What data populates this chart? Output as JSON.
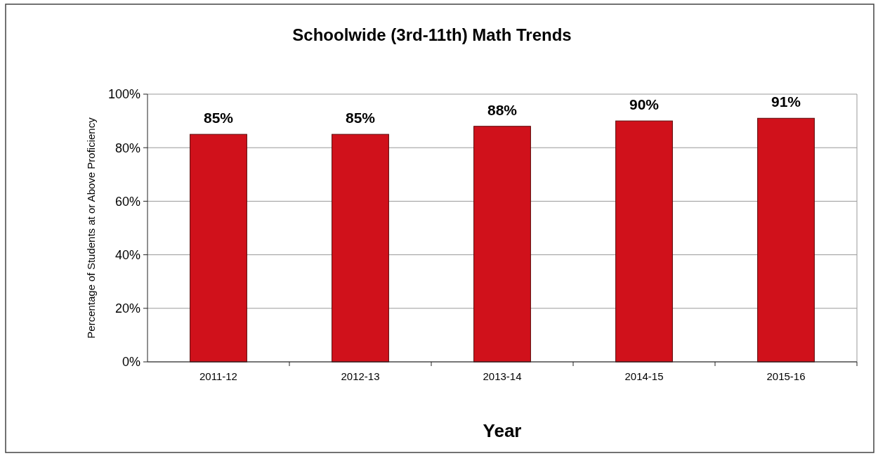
{
  "chart_data": {
    "type": "bar",
    "title": "Schoolwide (3rd-11th) Math Trends",
    "xlabel": "Year",
    "ylabel": "Percentage of Students at or Above Proficiency",
    "categories": [
      "2011-12",
      "2012-13",
      "2013-14",
      "2014-15",
      "2015-16"
    ],
    "values": [
      85,
      85,
      88,
      90,
      91
    ],
    "color": "#d0111b",
    "value_labels": [
      "85%",
      "85%",
      "88%",
      "90%",
      "91%"
    ],
    "ylim": [
      0,
      100
    ],
    "yticks": [
      {
        "value": 0,
        "label": "0%"
      },
      {
        "value": 20,
        "label": "20%"
      },
      {
        "value": 40,
        "label": "40%"
      },
      {
        "value": 60,
        "label": "60%"
      },
      {
        "value": 80,
        "label": "80%"
      },
      {
        "value": 100,
        "label": "100%"
      }
    ],
    "grid": "y"
  }
}
